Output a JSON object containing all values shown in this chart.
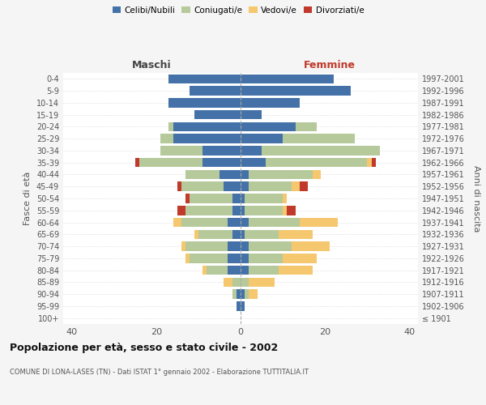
{
  "age_groups": [
    "100+",
    "95-99",
    "90-94",
    "85-89",
    "80-84",
    "75-79",
    "70-74",
    "65-69",
    "60-64",
    "55-59",
    "50-54",
    "45-49",
    "40-44",
    "35-39",
    "30-34",
    "25-29",
    "20-24",
    "15-19",
    "10-14",
    "5-9",
    "0-4"
  ],
  "birth_years": [
    "≤ 1901",
    "1902-1906",
    "1907-1911",
    "1912-1916",
    "1917-1921",
    "1922-1926",
    "1927-1931",
    "1932-1936",
    "1937-1941",
    "1942-1946",
    "1947-1951",
    "1952-1956",
    "1957-1961",
    "1962-1966",
    "1967-1971",
    "1972-1976",
    "1977-1981",
    "1982-1986",
    "1987-1991",
    "1992-1996",
    "1997-2001"
  ],
  "maschi": {
    "celibi": [
      0,
      1,
      1,
      0,
      3,
      3,
      3,
      2,
      3,
      2,
      2,
      4,
      5,
      9,
      9,
      16,
      16,
      11,
      17,
      12,
      17
    ],
    "coniugati": [
      0,
      0,
      1,
      2,
      5,
      9,
      10,
      8,
      11,
      11,
      10,
      10,
      8,
      15,
      10,
      3,
      1,
      0,
      0,
      0,
      0
    ],
    "vedovi": [
      0,
      0,
      0,
      2,
      1,
      1,
      1,
      1,
      2,
      0,
      0,
      0,
      0,
      0,
      0,
      0,
      0,
      0,
      0,
      0,
      0
    ],
    "divorziati": [
      0,
      0,
      0,
      0,
      0,
      0,
      0,
      0,
      0,
      2,
      1,
      1,
      0,
      1,
      0,
      0,
      0,
      0,
      0,
      0,
      0
    ]
  },
  "femmine": {
    "nubili": [
      0,
      1,
      1,
      0,
      2,
      2,
      2,
      1,
      2,
      1,
      1,
      2,
      2,
      6,
      5,
      10,
      13,
      5,
      14,
      26,
      22
    ],
    "coniugate": [
      0,
      0,
      1,
      2,
      7,
      8,
      10,
      8,
      12,
      9,
      9,
      10,
      15,
      24,
      28,
      17,
      5,
      0,
      0,
      0,
      0
    ],
    "vedove": [
      0,
      0,
      2,
      6,
      8,
      8,
      9,
      8,
      9,
      1,
      1,
      2,
      2,
      1,
      0,
      0,
      0,
      0,
      0,
      0,
      0
    ],
    "divorziate": [
      0,
      0,
      0,
      0,
      0,
      0,
      0,
      0,
      0,
      2,
      0,
      2,
      0,
      1,
      0,
      0,
      0,
      0,
      0,
      0,
      0
    ]
  },
  "colors": {
    "celibi": "#4472a8",
    "coniugati": "#b5c99a",
    "vedovi": "#f5c76e",
    "divorziati": "#c0392b"
  },
  "xlim": 42,
  "title": "Popolazione per età, sesso e stato civile - 2002",
  "subtitle": "COMUNE DI LONA-LASES (TN) - Dati ISTAT 1° gennaio 2002 - Elaborazione TUTTITALIA.IT",
  "ylabel": "Fasce di età",
  "ylabel_right": "Anni di nascita",
  "xlabel_left": "Maschi",
  "xlabel_right": "Femmine",
  "bg_color": "#f5f5f5",
  "plot_bg": "#ffffff"
}
